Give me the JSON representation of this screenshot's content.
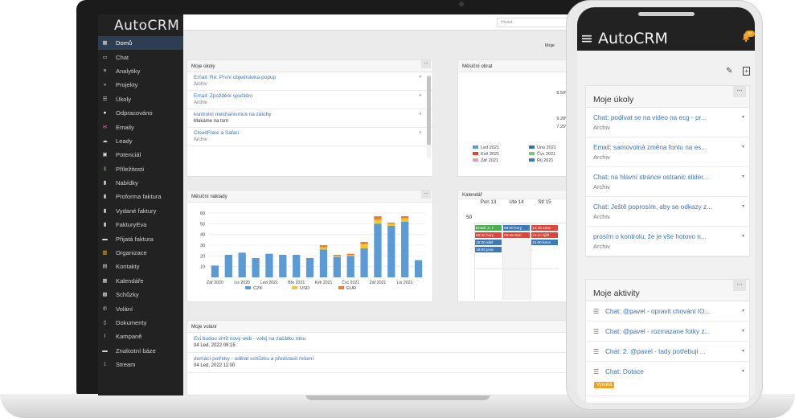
{
  "app": {
    "brand": "AutoCRM"
  },
  "topbar": {
    "search_placeholder": "Hledat",
    "right_link": "Moje"
  },
  "sidebar": {
    "items": [
      {
        "label": "Domů",
        "icon": "grid-icon"
      },
      {
        "label": "Chat",
        "icon": "monitor-icon"
      },
      {
        "label": "Analytiky",
        "icon": "database-icon"
      },
      {
        "label": "Projekty",
        "icon": "double-chevron-icon"
      },
      {
        "label": "Úkoly",
        "icon": "list-icon"
      },
      {
        "label": "Odpracováno",
        "icon": "clock-icon"
      },
      {
        "label": "Emaily",
        "icon": "envelope-icon"
      },
      {
        "label": "Leady",
        "icon": "cloud-icon"
      },
      {
        "label": "Potenciál",
        "icon": "id-card-icon"
      },
      {
        "label": "Příležitosti",
        "icon": "dollar-icon"
      },
      {
        "label": "Nabídky",
        "icon": "file-icon"
      },
      {
        "label": "Proforma faktura",
        "icon": "file-icon"
      },
      {
        "label": "Vydané faktury",
        "icon": "file-icon"
      },
      {
        "label": "FakturyEva",
        "icon": "file-icon"
      },
      {
        "label": "Přijatá faktura",
        "icon": "tray-icon"
      },
      {
        "label": "Organizace",
        "icon": "building-icon"
      },
      {
        "label": "Kontakty",
        "icon": "contact-icon"
      },
      {
        "label": "Kalendáře",
        "icon": "calendar-icon"
      },
      {
        "label": "Schůzky",
        "icon": "calendar-check-icon"
      },
      {
        "label": "Volání",
        "icon": "phone-icon"
      },
      {
        "label": "Dokumenty",
        "icon": "document-icon"
      },
      {
        "label": "Kampaně",
        "icon": "chart-line-icon"
      },
      {
        "label": "Znalostní báze",
        "icon": "book-icon"
      },
      {
        "label": "Stream",
        "icon": "rss-icon"
      }
    ]
  },
  "tasks_card": {
    "title": "Moje úkoly",
    "items": [
      {
        "title": "Email: Re: První objednávka-popup",
        "sub": "Archiv"
      },
      {
        "title": "Email: Zpoždění spuštění",
        "sub": "Archiv"
      },
      {
        "title": "kontrolní mechanismus na zálohy",
        "sub": "Makáme na tom"
      },
      {
        "title": "CloudFlare a Safari",
        "sub": "Archiv"
      }
    ]
  },
  "revenue_card": {
    "title": "Měsíční obrat",
    "percents": [
      "7.",
      "8.50%",
      "9.28%",
      "7.25%"
    ],
    "legend": [
      {
        "label": "Led 2021",
        "color": "#5b9bd5"
      },
      {
        "label": "Úno 2021",
        "color": "#3f6fa8"
      },
      {
        "label": "Kvě 2021",
        "color": "#e2443a"
      },
      {
        "label": "Čvc 2021",
        "color": "#7cc37a"
      },
      {
        "label": "Zář 2021",
        "color": "#d9a3b0"
      },
      {
        "label": "Říj 2021",
        "color": "#3d78b8"
      }
    ]
  },
  "costs_card": {
    "title": "Měsíční náklady",
    "chart_data": {
      "type": "bar",
      "stacked": true,
      "ylim": [
        0,
        60
      ],
      "yticks": [
        10,
        20,
        30,
        40,
        50,
        60
      ],
      "categories": [
        "Zář 2020",
        "Říj 2020",
        "Lis 2020",
        "Pro 2020",
        "Led 2021",
        "Úno 2021",
        "Bře 2021",
        "Dub 2021",
        "Kvě 2021",
        "Čvn 2021",
        "Čvc 2021",
        "Srp 2021",
        "Zář 2021",
        "Říj 2021",
        "Lis 2021",
        "Pro 2021"
      ],
      "xtick_labels": [
        "Zář 2020",
        "Lis 2020",
        "Led 2021",
        "Bře 2021",
        "Kvě 2021",
        "Čvc 2021",
        "Zář 2021",
        "Lis 2021"
      ],
      "series": [
        {
          "name": "CZK",
          "color": "#5b9bd5",
          "values": [
            11,
            21,
            23,
            18,
            22,
            21,
            21,
            18,
            26,
            19,
            20,
            27,
            50,
            48,
            52,
            16
          ]
        },
        {
          "name": "USD",
          "color": "#f3c530",
          "values": [
            0,
            0,
            0,
            0,
            0,
            0,
            0,
            0,
            2,
            1,
            1,
            4,
            4,
            2,
            3,
            0
          ]
        },
        {
          "name": "EUR",
          "color": "#f07b2b",
          "values": [
            0,
            0,
            0,
            0,
            0,
            0,
            0,
            0,
            2,
            1,
            1,
            2,
            3,
            1,
            2,
            0
          ]
        }
      ]
    }
  },
  "calendar_card": {
    "title": "Kalendář",
    "days": [
      "Pon 13",
      "Úte 14",
      "Stř 15"
    ],
    "week": "50",
    "events": [
      {
        "text": "Email: 2. z",
        "color": "#4caf50",
        "col": 0,
        "row": 0
      },
      {
        "text": "08:30 hory",
        "color": "#e2443a",
        "col": 0,
        "row": 1
      },
      {
        "text": "16:00 allel",
        "color": "#3d78b8",
        "col": 0,
        "row": 2
      },
      {
        "text": "18:00 prav",
        "color": "#3d78b8",
        "col": 0,
        "row": 3
      },
      {
        "text": "08:00 hory",
        "color": "#3d78b8",
        "col": 1,
        "row": 0
      },
      {
        "text": "08:45 Den",
        "color": "#e2443a",
        "col": 1,
        "row": 1
      },
      {
        "text": "12:15 Janc",
        "color": "#e2443a",
        "col": 2,
        "row": 0
      },
      {
        "text": "13:10 zjišt",
        "color": "#e2443a",
        "col": 2,
        "row": 1
      },
      {
        "text": "16:00 kans",
        "color": "#3d78b8",
        "col": 2,
        "row": 2
      }
    ]
  },
  "calls_card": {
    "title": "Moje volání",
    "items": [
      {
        "title": "Evi budou chtít nový web - volej na začátku roku",
        "date": "04 Led, 2022 09:15"
      },
      {
        "title": "domácí potřeby - udělat schůzku a představit řešení",
        "date": "04 Led, 2022 11:00"
      }
    ]
  },
  "phone": {
    "brand": "AutoCRM",
    "bell_count": "27",
    "tasks": {
      "title": "Moje úkoly",
      "items": [
        {
          "title": "Chat: podívat se na video na ecg - pr...",
          "sub": "Archiv"
        },
        {
          "title": "Email: samovolná změna fontu na es...",
          "sub": "Archiv"
        },
        {
          "title": "Chat: na hlavní stránce ostranic slider...",
          "sub": "Archiv"
        },
        {
          "title": "Chat: Ještě poprosím, aby se odkazy z...",
          "sub": "Archiv"
        },
        {
          "title": "prosím o kontrolu, že je vše hotovo n...",
          "sub": "Archiv"
        }
      ]
    },
    "activities": {
      "title": "Moje aktivity",
      "items": [
        {
          "title": "Chat: @pavel - opravit chování IO..."
        },
        {
          "title": "Chat: @pavel - rozmazane fotky z..."
        },
        {
          "title": "Chat: 2. @pavel - tady potřebuji ..."
        },
        {
          "title": "Chat: Dotace",
          "badge": "Vysoká"
        }
      ]
    }
  }
}
